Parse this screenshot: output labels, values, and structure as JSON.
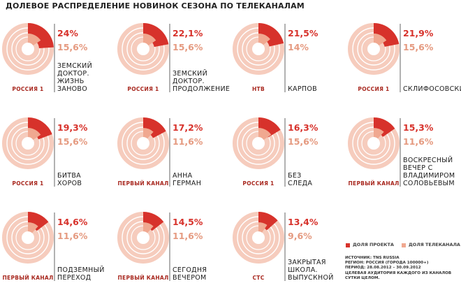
{
  "title": "ДОЛЕВОЕ РАСПРЕДЕЛЕНИЕ НОВИНОК СЕЗОНА ПО ТЕЛЕКАНАЛАМ",
  "colors": {
    "project": "#d7322b",
    "channel": "#f0a890",
    "ring_base": "#f6ccbd",
    "channel_text": "#a8281f",
    "value2_text": "#e59a80"
  },
  "legend": {
    "project": "ДОЛЯ ПРОЕКТА",
    "channel": "ДОЛЯ ТЕЛЕКАНАЛА"
  },
  "source": [
    "ИСТОЧНИК: TNS RUSSIA",
    "РЕГИОН: РОССИЯ (ГОРОДА 100000+)",
    "ПЕРИОД: 28.08.2012 – 30.09.2012",
    "ЦЕЛЕВАЯ АУДИТОРИЯ КАЖДОГО ИЗ КАНАЛОВ",
    "СУТКИ ЦЕЛОМ."
  ],
  "chart_data": {
    "type": "pie",
    "title": "ДОЛЕВОЕ РАСПРЕДЕЛЕНИЕ НОВИНОК СЕЗОНА ПО ТЕЛЕКАНАЛАМ",
    "series": [
      {
        "name": "ДОЛЯ ПРОЕКТА"
      },
      {
        "name": "ДОЛЯ ТЕЛЕКАНАЛА"
      }
    ],
    "items": [
      {
        "project": 24.0,
        "channel": 15.6,
        "project_label": "24%",
        "channel_label": "15,6%",
        "channel_name": "РОССИЯ 1",
        "show": [
          "ЗЕМСКИЙ",
          "ДОКТОР.",
          "ЖИЗНЬ",
          "ЗАНОВО"
        ]
      },
      {
        "project": 22.1,
        "channel": 15.6,
        "project_label": "22,1%",
        "channel_label": "15,6%",
        "channel_name": "РОССИЯ 1",
        "show": [
          "ЗЕМСКИЙ",
          "ДОКТОР.",
          "ПРОДОЛЖЕНИЕ"
        ]
      },
      {
        "project": 21.5,
        "channel": 14.0,
        "project_label": "21,5%",
        "channel_label": "14%",
        "channel_name": "НТВ",
        "show": [
          "КАРПОВ"
        ]
      },
      {
        "project": 21.9,
        "channel": 15.6,
        "project_label": "21,9%",
        "channel_label": "15,6%",
        "channel_name": "РОССИЯ 1",
        "show": [
          "СКЛИФОСОВСКИЙ"
        ]
      },
      {
        "project": 19.3,
        "channel": 15.6,
        "project_label": "19,3%",
        "channel_label": "15,6%",
        "channel_name": "РОССИЯ 1",
        "show": [
          "БИТВА",
          "ХОРОВ"
        ]
      },
      {
        "project": 17.2,
        "channel": 11.6,
        "project_label": "17,2%",
        "channel_label": "11,6%",
        "channel_name": "ПЕРВЫЙ КАНАЛ",
        "show": [
          "АННА",
          "ГЕРМАН"
        ]
      },
      {
        "project": 16.3,
        "channel": 15.6,
        "project_label": "16,3%",
        "channel_label": "15,6%",
        "channel_name": "РОССИЯ 1",
        "show": [
          "БЕЗ",
          "СЛЕДА"
        ]
      },
      {
        "project": 15.3,
        "channel": 11.6,
        "project_label": "15,3%",
        "channel_label": "11,6%",
        "channel_name": "ПЕРВЫЙ КАНАЛ",
        "show": [
          "ВОСКРЕСНЫЙ",
          "ВЕЧЕР С",
          "ВЛАДИМИРОМ",
          "СОЛОВЬЕВЫМ"
        ]
      },
      {
        "project": 14.6,
        "channel": 11.6,
        "project_label": "14,6%",
        "channel_label": "11,6%",
        "channel_name": "ПЕРВЫЙ КАНАЛ",
        "show": [
          "ПОДЗЕМНЫЙ",
          "ПЕРЕХОД"
        ]
      },
      {
        "project": 14.5,
        "channel": 11.6,
        "project_label": "14,5%",
        "channel_label": "11,6%",
        "channel_name": "ПЕРВЫЙ КАНАЛ",
        "show": [
          "СЕГОДНЯ",
          "ВЕЧЕРОМ"
        ]
      },
      {
        "project": 13.4,
        "channel": 9.6,
        "project_label": "13,4%",
        "channel_label": "9,6%",
        "channel_name": "СТС",
        "show": [
          "ЗАКРЫТАЯ",
          "ШКОЛА.",
          "ВЫПУСКНОЙ"
        ]
      }
    ]
  }
}
